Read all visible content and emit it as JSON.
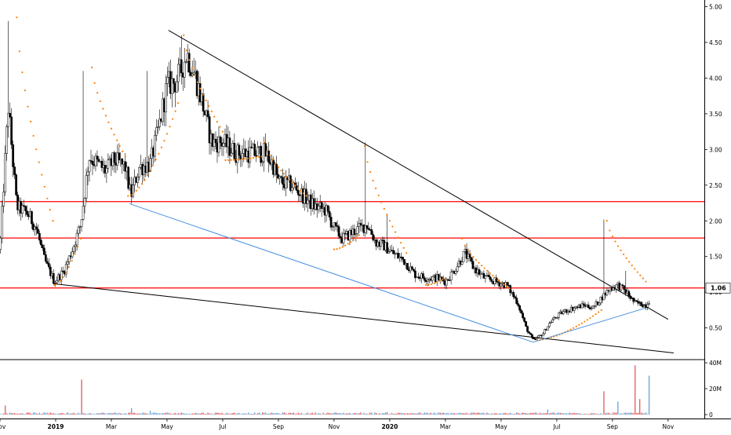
{
  "chart_data": {
    "type": "candlestick",
    "colors": {
      "up_candle": "#ffffff",
      "down_candle": "#000000",
      "candle_outline": "#000000",
      "sar": "#ff7f00",
      "resistance": "#ff0000",
      "trend_black": "#000000",
      "trend_blue": "#4a90e2",
      "volume_up": "#6fa8dc",
      "volume_down": "#e06666",
      "grid": "#ffffff",
      "last_price_badge": "#ffffff"
    },
    "price_axis": {
      "ticks": [
        "5.00",
        "4.50",
        "4.00",
        "3.50",
        "3.00",
        "2.50",
        "2.00",
        "1.50",
        "1.00",
        "0.50"
      ],
      "tick_values": [
        5.0,
        4.5,
        4.0,
        3.5,
        3.0,
        2.5,
        2.0,
        1.5,
        1.0,
        0.5
      ],
      "range": [
        0.1,
        5.05
      ],
      "last_price_label": "1.06",
      "last_price": 1.06
    },
    "volume_axis": {
      "ticks": [
        "40M",
        "20M",
        "0"
      ],
      "tick_values": [
        40,
        20,
        0
      ],
      "range": [
        0,
        40
      ],
      "unit": "M"
    },
    "time_axis": {
      "labels": [
        "Nov",
        "2019",
        "Mar",
        "May",
        "Jul",
        "Sep",
        "Nov",
        "2020",
        "Mar",
        "May",
        "Jul",
        "Sep",
        "Nov"
      ],
      "label_months": [
        0,
        2,
        4,
        6,
        8,
        10,
        12,
        14,
        16,
        18,
        20,
        22,
        24
      ],
      "range_months": [
        0,
        25.3
      ],
      "start": "2018-11"
    },
    "horizontal_lines": [
      {
        "name": "resistance-1",
        "value": 2.27
      },
      {
        "name": "resistance-2",
        "value": 1.76
      },
      {
        "name": "resistance-3",
        "value": 1.06
      }
    ],
    "trend_lines": [
      {
        "name": "upper-downtrend",
        "color": "trend_black",
        "points": [
          [
            6.05,
            4.67
          ],
          [
            24.0,
            0.62
          ]
        ]
      },
      {
        "name": "lower-support",
        "color": "trend_black",
        "points": [
          [
            1.9,
            1.12
          ],
          [
            24.2,
            0.15
          ]
        ]
      },
      {
        "name": "blue-channel-low",
        "color": "trend_blue",
        "points": [
          [
            4.65,
            2.24
          ],
          [
            19.15,
            0.3
          ]
        ]
      },
      {
        "name": "blue-channel-rise",
        "color": "trend_blue",
        "points": [
          [
            19.15,
            0.3
          ],
          [
            23.2,
            0.78
          ]
        ]
      }
    ],
    "price_anchors": [
      [
        0.0,
        1.6
      ],
      [
        0.3,
        3.6
      ],
      [
        0.6,
        2.2
      ],
      [
        1.0,
        2.1
      ],
      [
        1.3,
        1.9
      ],
      [
        1.6,
        1.45
      ],
      [
        1.95,
        1.15
      ],
      [
        2.3,
        1.3
      ],
      [
        2.6,
        1.6
      ],
      [
        2.9,
        1.95
      ],
      [
        3.2,
        2.9
      ],
      [
        3.5,
        2.8
      ],
      [
        3.8,
        2.7
      ],
      [
        4.1,
        2.85
      ],
      [
        4.5,
        2.75
      ],
      [
        4.7,
        2.35
      ],
      [
        5.0,
        2.75
      ],
      [
        5.4,
        2.8
      ],
      [
        5.7,
        3.3
      ],
      [
        6.0,
        3.9
      ],
      [
        6.3,
        3.95
      ],
      [
        6.5,
        4.1
      ],
      [
        6.7,
        4.35
      ],
      [
        7.0,
        4.05
      ],
      [
        7.3,
        3.6
      ],
      [
        7.6,
        3.1
      ],
      [
        8.0,
        3.1
      ],
      [
        8.5,
        2.95
      ],
      [
        9.0,
        2.95
      ],
      [
        9.5,
        2.95
      ],
      [
        9.8,
        2.8
      ],
      [
        10.0,
        2.55
      ],
      [
        10.5,
        2.5
      ],
      [
        10.9,
        2.35
      ],
      [
        11.3,
        2.2
      ],
      [
        11.7,
        2.15
      ],
      [
        12.0,
        1.9
      ],
      [
        12.3,
        1.75
      ],
      [
        12.7,
        1.85
      ],
      [
        13.2,
        1.95
      ],
      [
        13.5,
        1.7
      ],
      [
        13.8,
        1.65
      ],
      [
        14.1,
        1.55
      ],
      [
        14.5,
        1.45
      ],
      [
        14.9,
        1.25
      ],
      [
        15.3,
        1.2
      ],
      [
        15.7,
        1.2
      ],
      [
        16.0,
        1.15
      ],
      [
        16.3,
        1.3
      ],
      [
        16.7,
        1.55
      ],
      [
        17.0,
        1.35
      ],
      [
        17.4,
        1.2
      ],
      [
        17.8,
        1.15
      ],
      [
        18.2,
        1.1
      ],
      [
        18.6,
        0.85
      ],
      [
        18.9,
        0.5
      ],
      [
        19.15,
        0.32
      ],
      [
        19.5,
        0.42
      ],
      [
        19.8,
        0.6
      ],
      [
        20.2,
        0.72
      ],
      [
        20.6,
        0.78
      ],
      [
        21.0,
        0.82
      ],
      [
        21.3,
        0.78
      ],
      [
        21.6,
        0.92
      ],
      [
        21.9,
        1.05
      ],
      [
        22.2,
        1.1
      ],
      [
        22.5,
        1.0
      ],
      [
        22.8,
        0.85
      ],
      [
        23.2,
        0.82
      ],
      [
        23.35,
        0.9
      ]
    ],
    "price_spikes": [
      {
        "month": 0.3,
        "high": 4.8
      },
      {
        "month": 3.0,
        "high": 4.1
      },
      {
        "month": 5.3,
        "high": 4.1
      },
      {
        "month": 6.5,
        "high": 4.6
      },
      {
        "month": 13.1,
        "high": 3.1
      },
      {
        "month": 13.9,
        "high": 2.1
      },
      {
        "month": 21.7,
        "high": 2.02
      },
      {
        "month": 22.5,
        "high": 1.3
      }
    ],
    "volume_spikes": [
      {
        "month": 0.2,
        "value": 7
      },
      {
        "month": 2.95,
        "value": 27
      },
      {
        "month": 4.7,
        "value": 5
      },
      {
        "month": 5.4,
        "value": 3
      },
      {
        "month": 13.9,
        "value": 2
      },
      {
        "month": 19.7,
        "value": 4
      },
      {
        "month": 21.7,
        "value": 18
      },
      {
        "month": 22.2,
        "value": 10
      },
      {
        "month": 22.8,
        "value": 38
      },
      {
        "month": 23.0,
        "value": 12
      },
      {
        "month": 23.3,
        "value": 30
      }
    ],
    "sar_segments": [
      {
        "side": "above",
        "from": 0.6,
        "to": 1.9,
        "start": 4.85,
        "end": 2.0
      },
      {
        "side": "below",
        "from": 1.95,
        "to": 2.9,
        "start": 1.1,
        "end": 1.75
      },
      {
        "side": "above",
        "from": 3.3,
        "to": 4.5,
        "start": 4.15,
        "end": 2.9
      },
      {
        "side": "below",
        "from": 4.6,
        "to": 6.4,
        "start": 2.35,
        "end": 3.65
      },
      {
        "side": "above",
        "from": 6.6,
        "to": 8.0,
        "start": 4.6,
        "end": 3.25
      },
      {
        "side": "below",
        "from": 8.1,
        "to": 9.4,
        "start": 2.85,
        "end": 2.9
      },
      {
        "side": "above",
        "from": 9.5,
        "to": 11.0,
        "start": 3.1,
        "end": 2.35
      },
      {
        "side": "below",
        "from": 12.0,
        "to": 12.9,
        "start": 1.6,
        "end": 1.8
      },
      {
        "side": "above",
        "from": 13.1,
        "to": 14.6,
        "start": 3.05,
        "end": 1.55
      },
      {
        "side": "below",
        "from": 15.3,
        "to": 16.0,
        "start": 1.1,
        "end": 1.2
      },
      {
        "side": "above",
        "from": 16.6,
        "to": 18.3,
        "start": 1.75,
        "end": 1.05
      },
      {
        "side": "below",
        "from": 19.3,
        "to": 21.6,
        "start": 0.33,
        "end": 0.75
      },
      {
        "side": "above",
        "from": 21.8,
        "to": 23.2,
        "start": 2.0,
        "end": 1.15
      }
    ]
  }
}
